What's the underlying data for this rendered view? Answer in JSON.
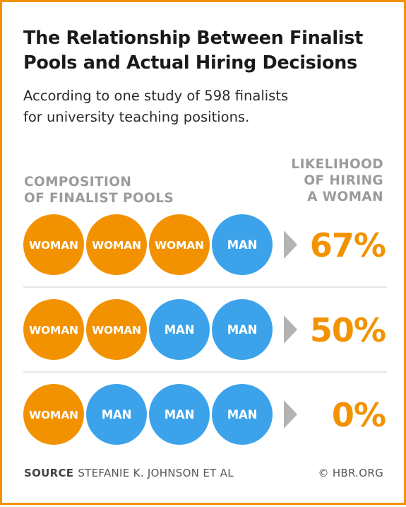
{
  "title_line1": "The Relationship Between Finalist",
  "title_line2": "Pools and Actual Hiring Decisions",
  "subtitle_line1": "According to one study of 598 finalists",
  "subtitle_line2": "for university teaching positions.",
  "left_header": [
    "COMPOSITION",
    "OF FINALIST POOLS"
  ],
  "right_header": [
    "LIKELIHOOD",
    "OF HIRING",
    "A WOMAN"
  ],
  "source_label": "SOURCE",
  "source_text": "STEFANIE K. JOHNSON ET AL",
  "copyright": "© HBR.ORG",
  "colors": {
    "woman": "#f39200",
    "man": "#3ca3ea",
    "arrow": "#b3b3b3",
    "divider": "#cfcfcf",
    "percent": "#f39200",
    "border": "#f39200"
  },
  "chart_data": {
    "type": "table",
    "rows": [
      {
        "pool": [
          "WOMAN",
          "WOMAN",
          "WOMAN",
          "MAN"
        ],
        "likelihood": "67%"
      },
      {
        "pool": [
          "WOMAN",
          "WOMAN",
          "MAN",
          "MAN"
        ],
        "likelihood": "50%"
      },
      {
        "pool": [
          "WOMAN",
          "MAN",
          "MAN",
          "MAN"
        ],
        "likelihood": "0%"
      }
    ]
  }
}
